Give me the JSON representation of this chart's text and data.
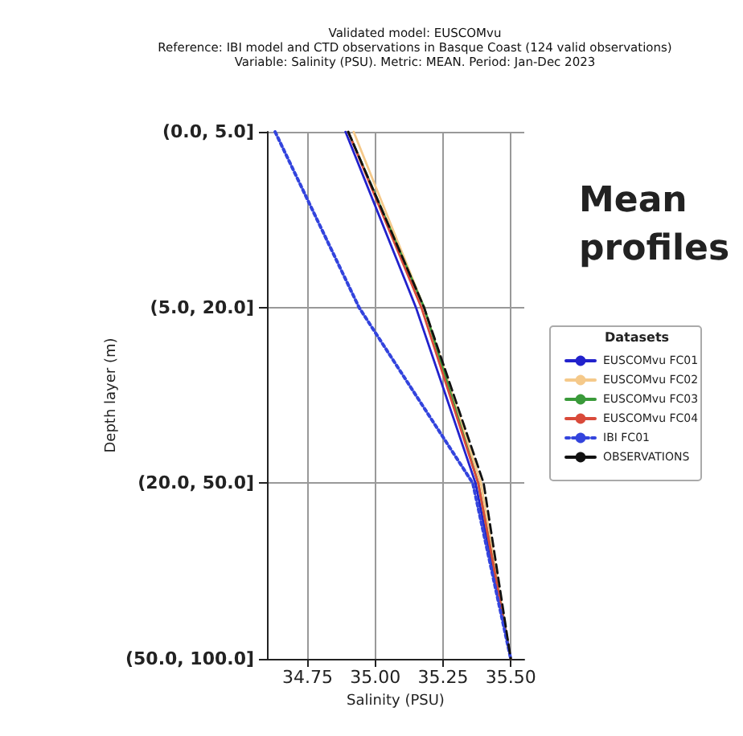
{
  "chart_data": {
    "type": "line",
    "orientation": "horizontal",
    "title": "Validated model: EUSCOMvu\nReference: IBI model and CTD observations in Basque Coast (124 valid observations)\nVariable: Salinity (PSU). Metric: MEAN. Period: Jan-Dec 2023",
    "xlabel": "Salinity (PSU)",
    "ylabel": "Depth layer (m)",
    "legend_title": "Datasets",
    "annotations": [
      "Mean profiles"
    ],
    "categories": [
      "(0.0, 5.0]",
      "(5.0, 20.0]",
      "(20.0, 50.0]",
      "(50.0, 100.0]"
    ],
    "series": [
      {
        "name": "EUSCOMvu FC01",
        "color": "#2222cc",
        "values": [
          34.89,
          35.15,
          35.37,
          35.5
        ]
      },
      {
        "name": "EUSCOMvu FC02",
        "color": "#f5c98a",
        "values": [
          34.92,
          35.18,
          35.39,
          35.5
        ]
      },
      {
        "name": "EUSCOMvu FC03",
        "color": "#3a9a3a",
        "values": [
          34.9,
          35.18,
          35.38,
          35.5
        ]
      },
      {
        "name": "EUSCOMvu FC04",
        "color": "#d94a3a",
        "values": [
          34.9,
          35.17,
          35.38,
          35.5
        ]
      },
      {
        "name": "IBI FC01",
        "color": "#3344dd",
        "line_style": "dotted",
        "values": [
          34.63,
          34.94,
          35.36,
          35.5
        ]
      },
      {
        "name": "OBSERVATIONS",
        "color": "#111111",
        "line_style": "dashed",
        "values": [
          34.9,
          35.18,
          35.4,
          35.5
        ]
      }
    ],
    "xlim": [
      34.6,
      35.55
    ],
    "xticks": [
      34.75,
      {
        "value": 35.0,
        "label": "35.00"
      },
      35.25,
      {
        "value": 35.5,
        "label": "35.50"
      }
    ],
    "grid": true,
    "legend": "right",
    "marker": "none"
  }
}
